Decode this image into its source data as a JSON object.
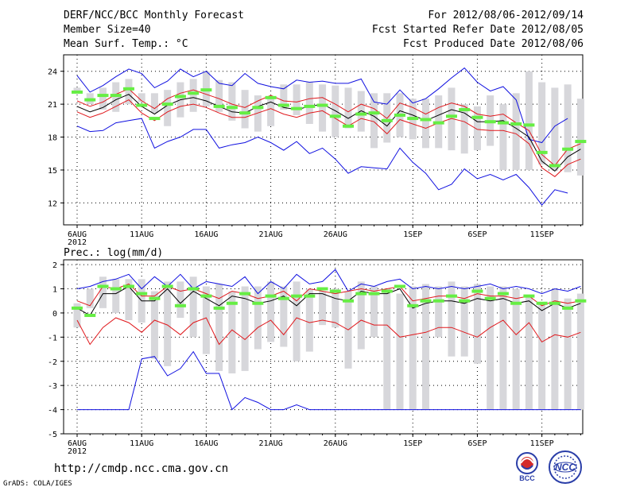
{
  "header": {
    "title": "DERF/NCC/BCC Monthly Forecast",
    "member_size": "Member Size=40",
    "variable": "Mean Surf. Temp.: °C",
    "period": "For 2012/08/06-2012/09/14",
    "started": "Fcst Started Refer Date 2012/08/05",
    "produced": "Fcst Produced Date 2012/08/06"
  },
  "footer": {
    "url": "http://cmdp.ncc.cma.gov.cn",
    "credit": "GrADS: COLA/IGES",
    "logo_bcc": "BCC",
    "logo_ncc": "NCC"
  },
  "colors": {
    "box": "#d7d7db",
    "mean": "#66ee44",
    "median": "#000000",
    "pct": "#e0181c",
    "ext": "#1010e0",
    "grid": "#000000"
  },
  "chart_data": [
    {
      "type": "line",
      "title": "Mean Surf. Temp.: °C",
      "x_days": 40,
      "xtick_labels": [
        "6AUG",
        "11AUG",
        "16AUG",
        "21AUG",
        "26AUG",
        "1SEP",
        "6SEP",
        "11SEP"
      ],
      "xtick_days": [
        0,
        5,
        10,
        15,
        20,
        26,
        31,
        36
      ],
      "year_label": "2012",
      "ylim": [
        10,
        25.5
      ],
      "yticks": [
        12,
        15,
        18,
        21,
        24
      ],
      "grid": true,
      "box_low": [
        22.0,
        21.0,
        20.5,
        20.3,
        21.0,
        21.2,
        20.2,
        19.0,
        19.8,
        20.3,
        20.8,
        20.3,
        19.5,
        18.8,
        18.5,
        19.0,
        20.5,
        20.0,
        19.2,
        18.5,
        18.0,
        18.8,
        18.5,
        17.0,
        17.5,
        18.0,
        17.8,
        17.0,
        17.0,
        16.8,
        16.5,
        16.8,
        17.2,
        15.0,
        15.0,
        15.0,
        15.5,
        15.0,
        14.8,
        14.5
      ],
      "box_high": [
        22.5,
        22.0,
        22.5,
        23.0,
        23.3,
        22.0,
        22.0,
        22.3,
        23.0,
        23.3,
        24.0,
        23.2,
        23.0,
        22.3,
        21.8,
        21.5,
        22.8,
        22.8,
        23.0,
        22.8,
        22.7,
        22.5,
        22.2,
        22.0,
        22.0,
        22.0,
        21.5,
        21.5,
        21.8,
        22.5,
        21.0,
        20.8,
        21.8,
        21.0,
        22.0,
        24.0,
        23.0,
        22.5,
        22.8,
        21.5
      ],
      "mean": [
        22.1,
        21.4,
        21.8,
        21.8,
        22.4,
        20.9,
        19.7,
        21.0,
        21.7,
        22.0,
        22.3,
        20.8,
        20.7,
        20.2,
        20.7,
        21.6,
        20.9,
        20.6,
        20.8,
        20.9,
        19.9,
        19.0,
        20.1,
        20.2,
        19.5,
        20.0,
        19.7,
        19.6,
        19.3,
        19.9,
        20.5,
        19.8,
        19.4,
        19.3,
        19.2,
        19.1,
        16.6,
        15.4,
        16.9,
        17.6
      ],
      "pct_high": [
        21.3,
        20.8,
        21.2,
        21.9,
        22.4,
        21.3,
        20.6,
        21.5,
        22.0,
        22.3,
        21.9,
        21.5,
        21.0,
        20.7,
        21.3,
        21.8,
        21.3,
        21.2,
        21.5,
        21.6,
        21.0,
        20.3,
        21.0,
        20.6,
        19.7,
        21.1,
        20.7,
        20.1,
        20.7,
        21.1,
        20.8,
        20.1,
        19.9,
        20.1,
        19.3,
        18.6,
        16.4,
        15.4,
        16.9,
        17.4
      ],
      "median": [
        20.8,
        20.3,
        20.7,
        21.4,
        21.9,
        20.8,
        20.1,
        20.9,
        21.4,
        21.6,
        21.3,
        20.8,
        20.3,
        20.2,
        20.8,
        21.2,
        20.7,
        20.5,
        20.8,
        21.0,
        20.4,
        19.7,
        20.4,
        19.9,
        19.0,
        20.4,
        20.0,
        19.5,
        20.0,
        20.5,
        20.2,
        19.4,
        19.4,
        19.5,
        18.8,
        18.0,
        15.8,
        14.9,
        16.2,
        16.9
      ],
      "pct_low": [
        20.3,
        19.8,
        20.2,
        20.8,
        21.4,
        20.2,
        19.5,
        20.3,
        20.8,
        21.0,
        20.7,
        20.2,
        19.8,
        19.8,
        20.2,
        20.6,
        20.1,
        19.8,
        20.2,
        20.4,
        19.7,
        19.0,
        19.7,
        19.4,
        18.3,
        19.6,
        19.2,
        18.8,
        19.3,
        19.7,
        19.4,
        18.7,
        18.6,
        18.6,
        18.3,
        17.4,
        15.2,
        14.4,
        15.5,
        16.0
      ],
      "ext_high": [
        23.6,
        22.1,
        22.7,
        23.5,
        24.2,
        23.8,
        22.5,
        23.1,
        24.2,
        23.5,
        24.0,
        22.9,
        22.7,
        23.8,
        22.9,
        22.6,
        22.4,
        23.2,
        23.0,
        23.1,
        22.9,
        22.9,
        23.3,
        21.2,
        21.0,
        22.3,
        21.1,
        21.5,
        22.4,
        23.4,
        24.3,
        23.0,
        22.2,
        22.6,
        21.4,
        17.8,
        17.5,
        19.0,
        19.7,
        null
      ],
      "ext_low": [
        19.0,
        18.5,
        18.6,
        19.3,
        19.5,
        19.7,
        17.0,
        17.6,
        18.0,
        18.7,
        18.7,
        17.0,
        17.3,
        17.5,
        18.0,
        17.5,
        16.8,
        17.6,
        16.5,
        17.0,
        16.0,
        14.7,
        15.3,
        15.2,
        15.1,
        17.0,
        15.7,
        14.7,
        13.2,
        13.7,
        15.1,
        14.2,
        14.6,
        14.1,
        14.6,
        13.4,
        11.8,
        13.2,
        12.9,
        null
      ]
    },
    {
      "type": "line",
      "title": "Prec.: log(mm/d)",
      "x_days": 40,
      "xtick_labels": [
        "6AUG",
        "11AUG",
        "16AUG",
        "21AUG",
        "26AUG",
        "1SEP",
        "6SEP",
        "11SEP"
      ],
      "xtick_days": [
        0,
        5,
        10,
        15,
        20,
        26,
        31,
        36
      ],
      "year_label": "2012",
      "ylim": [
        -5,
        2.2
      ],
      "yticks": [
        -5,
        -4,
        -3,
        -2,
        -1,
        0,
        1,
        2
      ],
      "grid": true,
      "box_low": [
        -0.6,
        0.2,
        0.2,
        0.0,
        -0.3,
        -0.4,
        -1.9,
        -2.2,
        -0.2,
        -1.0,
        -1.7,
        -2.4,
        -2.5,
        -2.4,
        -1.5,
        -1.2,
        -1.4,
        -2.0,
        -1.6,
        -0.5,
        -0.6,
        -2.3,
        -1.5,
        -1.0,
        -4.0,
        -4.0,
        -4.0,
        -4.0,
        -1.0,
        -1.8,
        -1.8,
        -2.1,
        -4.0,
        -4.0,
        -4.0,
        -4.0,
        -4.0,
        -4.0,
        -4.0,
        -4.0
      ],
      "box_high": [
        0.4,
        1.0,
        1.5,
        1.4,
        1.4,
        1.4,
        0.9,
        1.3,
        1.3,
        1.5,
        1.1,
        1.2,
        0.9,
        1.1,
        1.1,
        1.3,
        1.1,
        1.3,
        1.0,
        0.9,
        1.0,
        0.9,
        1.3,
        1.1,
        1.0,
        0.8,
        1.1,
        1.2,
        1.1,
        1.3,
        1.1,
        1.2,
        1.1,
        1.1,
        1.0,
        0.7,
        0.4,
        1.0,
        0.6,
        0.8
      ],
      "mean": [
        0.2,
        -0.1,
        1.1,
        1.0,
        1.1,
        0.8,
        0.6,
        1.1,
        0.3,
        1.0,
        0.7,
        0.2,
        0.4,
        0.8,
        0.4,
        0.7,
        0.6,
        0.7,
        0.7,
        1.0,
        0.9,
        0.5,
        0.8,
        0.8,
        0.9,
        1.1,
        0.3,
        0.5,
        0.5,
        0.7,
        0.5,
        0.9,
        0.6,
        0.8,
        0.4,
        0.7,
        0.4,
        0.4,
        0.2,
        0.5
      ],
      "pct_high": [
        0.5,
        0.3,
        1.1,
        1.0,
        1.2,
        0.7,
        0.7,
        1.1,
        0.9,
        1.0,
        0.8,
        0.6,
        0.9,
        0.8,
        0.6,
        0.7,
        0.9,
        0.5,
        1.0,
        0.9,
        0.8,
        0.9,
        1.0,
        0.9,
        1.0,
        1.1,
        0.5,
        0.6,
        0.7,
        0.7,
        0.6,
        0.8,
        0.7,
        0.7,
        0.6,
        0.7,
        0.3,
        0.5,
        0.4,
        0.5
      ],
      "median": [
        0.2,
        -0.1,
        0.8,
        0.8,
        1.1,
        0.5,
        0.5,
        1.0,
        0.4,
        0.9,
        0.6,
        0.3,
        0.7,
        0.6,
        0.4,
        0.5,
        0.7,
        0.3,
        0.8,
        0.8,
        0.6,
        0.5,
        0.9,
        0.8,
        0.8,
        1.0,
        0.2,
        0.4,
        0.5,
        0.5,
        0.4,
        0.6,
        0.5,
        0.6,
        0.4,
        0.5,
        0.1,
        0.4,
        0.2,
        0.4
      ],
      "pct_low": [
        -0.3,
        -1.3,
        -0.6,
        -0.2,
        -0.4,
        -0.8,
        -0.3,
        -0.5,
        -0.9,
        -0.4,
        -0.2,
        -1.3,
        -0.7,
        -1.1,
        -0.6,
        -0.3,
        -0.9,
        -0.2,
        -0.4,
        -0.3,
        -0.4,
        -0.7,
        -0.3,
        -0.5,
        -0.5,
        -1.0,
        -0.9,
        -0.8,
        -0.6,
        -0.6,
        -0.8,
        -1.0,
        -0.6,
        -0.3,
        -0.9,
        -0.4,
        -1.2,
        -0.9,
        -1.0,
        -0.8
      ],
      "ext_high": [
        1.0,
        1.1,
        1.3,
        1.4,
        1.6,
        1.0,
        1.5,
        1.1,
        1.6,
        1.0,
        1.3,
        1.2,
        1.1,
        1.5,
        0.8,
        1.3,
        1.0,
        1.6,
        1.2,
        1.3,
        1.8,
        0.9,
        1.2,
        1.1,
        1.3,
        1.4,
        1.0,
        1.1,
        1.0,
        1.1,
        1.0,
        1.1,
        1.2,
        1.0,
        1.1,
        1.0,
        0.8,
        1.0,
        0.9,
        1.1
      ],
      "ext_low": [
        -4.0,
        -4.0,
        -4.0,
        -4.0,
        -4.0,
        -1.9,
        -1.8,
        -2.6,
        -2.3,
        -1.6,
        -2.5,
        -2.5,
        -4.0,
        -3.5,
        -3.7,
        -4.0,
        -4.0,
        -3.8,
        -4.0,
        -4.0,
        -4.0,
        -4.0,
        -4.0,
        -4.0,
        -4.0,
        -4.0,
        -4.0,
        -4.0,
        -4.0,
        -4.0,
        -4.0,
        -4.0,
        -4.0,
        -4.0,
        -4.0,
        -4.0,
        -4.0,
        -4.0,
        -4.0,
        -4.0
      ]
    }
  ]
}
